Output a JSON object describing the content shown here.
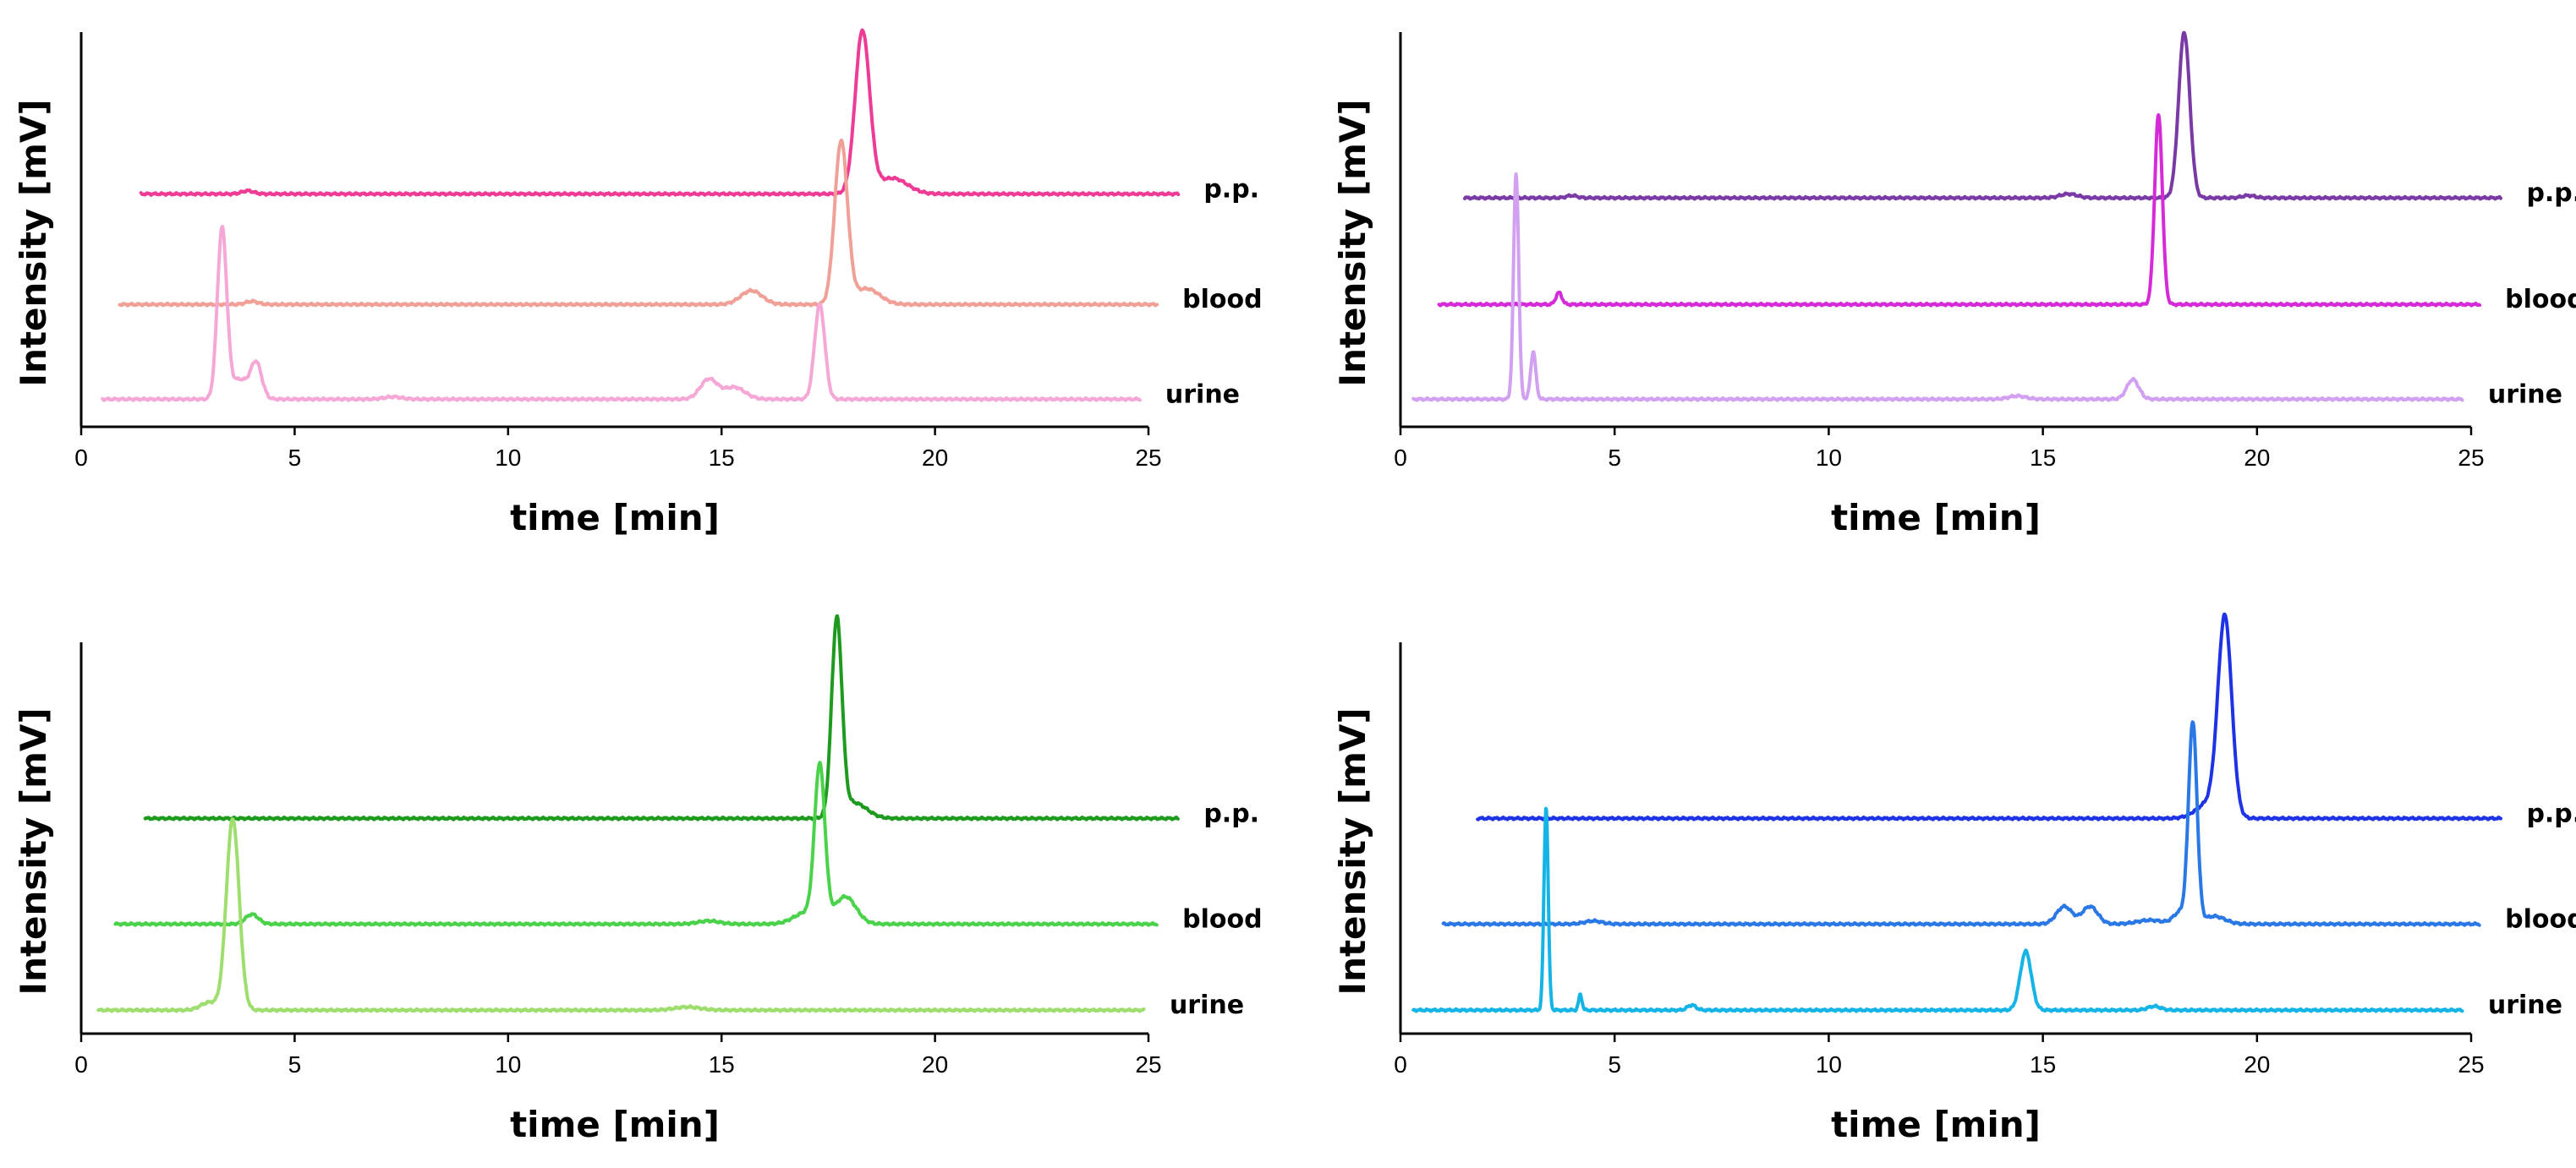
{
  "chart_data": [
    {
      "type": "line",
      "panel": "top-left",
      "xlabel": "time [min]",
      "ylabel": "Intensity [mV]",
      "xlim": [
        0,
        25
      ],
      "xticks": [
        0,
        5,
        10,
        15,
        20,
        25
      ],
      "ylim": [
        0,
        100
      ],
      "series": [
        {
          "name": "p.p.",
          "color": "#ee3c96",
          "x_range": [
            1.4,
            25.7
          ],
          "baseline": 59,
          "peaks": [
            [
              3.9,
              0.8,
              0.14
            ],
            [
              18.3,
              41,
              0.17
            ],
            [
              19.0,
              4,
              0.35
            ]
          ]
        },
        {
          "name": "blood",
          "color": "#f0a096",
          "x_range": [
            0.9,
            25.2
          ],
          "baseline": 31,
          "peaks": [
            [
              4.0,
              0.8,
              0.14
            ],
            [
              15.7,
              3.5,
              0.25
            ],
            [
              17.8,
              41,
              0.15
            ],
            [
              18.4,
              4,
              0.3
            ]
          ]
        },
        {
          "name": "urine",
          "color": "#f5a8d6",
          "x_range": [
            0.5,
            24.8
          ],
          "baseline": 7,
          "peaks": [
            [
              3.3,
              43,
              0.11
            ],
            [
              3.7,
              5,
              0.2
            ],
            [
              4.1,
              9,
              0.13
            ],
            [
              7.3,
              0.6,
              0.2
            ],
            [
              14.7,
              5,
              0.2
            ],
            [
              15.3,
              3,
              0.25
            ],
            [
              17.3,
              24,
              0.12
            ]
          ]
        }
      ]
    },
    {
      "type": "line",
      "panel": "top-right",
      "xlabel": "time [min]",
      "ylabel": "Intensity [mV]",
      "xlim": [
        0,
        25
      ],
      "xticks": [
        0,
        5,
        10,
        15,
        20,
        25
      ],
      "ylim": [
        0,
        100
      ],
      "series": [
        {
          "name": "p.p.",
          "color": "#7a3aa6",
          "x_range": [
            1.5,
            25.7
          ],
          "baseline": 58,
          "peaks": [
            [
              4.0,
              0.6,
              0.12
            ],
            [
              15.6,
              1,
              0.2
            ],
            [
              18.3,
              42,
              0.13
            ],
            [
              19.8,
              0.6,
              0.15
            ]
          ]
        },
        {
          "name": "blood",
          "color": "#d52ad8",
          "x_range": [
            0.9,
            25.2
          ],
          "baseline": 31,
          "peaks": [
            [
              3.7,
              3,
              0.07
            ],
            [
              17.7,
              48,
              0.09
            ]
          ]
        },
        {
          "name": "urine",
          "color": "#d2a0f0",
          "x_range": [
            0.3,
            24.8
          ],
          "baseline": 7,
          "peaks": [
            [
              2.7,
              57,
              0.06
            ],
            [
              3.1,
              12,
              0.06
            ],
            [
              14.4,
              0.8,
              0.2
            ],
            [
              17.1,
              5,
              0.14
            ]
          ]
        }
      ]
    },
    {
      "type": "line",
      "panel": "bottom-left",
      "xlabel": "time [min]",
      "ylabel": "Intensity [mV]",
      "xlim": [
        0,
        25
      ],
      "xticks": [
        0,
        5,
        10,
        15,
        20,
        25
      ],
      "ylim": [
        0,
        100
      ],
      "series": [
        {
          "name": "p.p.",
          "color": "#1e9a1e",
          "x_range": [
            1.5,
            25.7
          ],
          "baseline": 55,
          "peaks": [
            [
              17.7,
              50,
              0.12
            ],
            [
              18.1,
              4,
              0.3
            ]
          ]
        },
        {
          "name": "blood",
          "color": "#4ad24a",
          "x_range": [
            0.8,
            25.2
          ],
          "baseline": 28,
          "peaks": [
            [
              4.0,
              2.5,
              0.15
            ],
            [
              14.7,
              0.8,
              0.25
            ],
            [
              17.0,
              3,
              0.3
            ],
            [
              17.3,
              39,
              0.12
            ],
            [
              17.9,
              7,
              0.25
            ]
          ]
        },
        {
          "name": "urine",
          "color": "#9ede6e",
          "x_range": [
            0.4,
            24.9
          ],
          "baseline": 6,
          "peaks": [
            [
              3.0,
              2,
              0.2
            ],
            [
              3.55,
              49,
              0.15
            ],
            [
              14.2,
              0.8,
              0.3
            ]
          ]
        }
      ]
    },
    {
      "type": "line",
      "panel": "bottom-right",
      "xlabel": "time [min]",
      "ylabel": "Intensity [mV]",
      "xlim": [
        0,
        25
      ],
      "xticks": [
        0,
        5,
        10,
        15,
        20,
        25
      ],
      "ylim": [
        0,
        100
      ],
      "series": [
        {
          "name": "p.p.",
          "color": "#1e32e6",
          "x_range": [
            1.8,
            25.7
          ],
          "baseline": 55,
          "peaks": [
            [
              18.9,
              4,
              0.3
            ],
            [
              19.25,
              50,
              0.16
            ]
          ]
        },
        {
          "name": "blood",
          "color": "#2a78e6",
          "x_range": [
            1.0,
            25.2
          ],
          "baseline": 28,
          "peaks": [
            [
              4.5,
              0.8,
              0.2
            ],
            [
              15.5,
              4.5,
              0.18
            ],
            [
              16.1,
              4.5,
              0.18
            ],
            [
              17.5,
              1,
              0.3
            ],
            [
              18.2,
              3,
              0.15
            ],
            [
              18.5,
              51,
              0.1
            ],
            [
              19.0,
              2,
              0.25
            ]
          ]
        },
        {
          "name": "urine",
          "color": "#14b4e6",
          "x_range": [
            0.3,
            24.8
          ],
          "baseline": 6,
          "peaks": [
            [
              3.4,
              52,
              0.05
            ],
            [
              4.2,
              4,
              0.04
            ],
            [
              6.8,
              1.3,
              0.1
            ],
            [
              14.6,
              15,
              0.13
            ],
            [
              17.6,
              1,
              0.15
            ]
          ]
        }
      ]
    }
  ]
}
